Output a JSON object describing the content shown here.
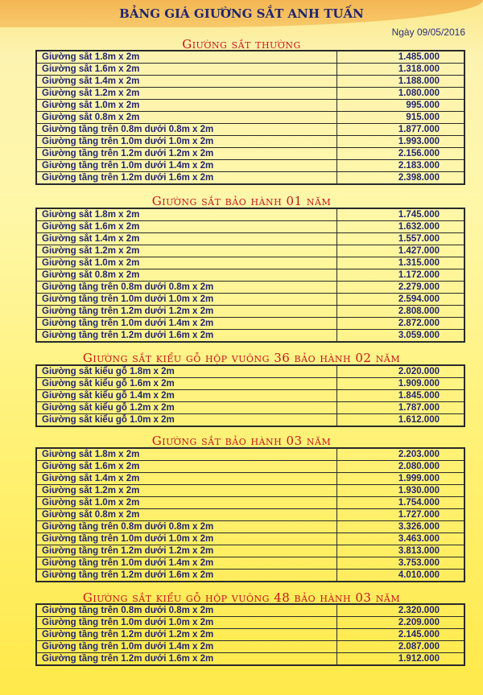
{
  "header": {
    "title": "BẢNG GIÁ GIƯỜNG SẮT ANH TUẤN",
    "date": "Ngày 09/05/2016"
  },
  "sections": [
    {
      "title": "Giường sắt thường",
      "rows": [
        [
          "Giường sắt 1.8m x 2m",
          "1.485.000"
        ],
        [
          "Giường sắt 1.6m x 2m",
          "1.318.000"
        ],
        [
          "Giường sắt 1.4m x 2m",
          "1.188.000"
        ],
        [
          "Giường sắt 1.2m x 2m",
          "1.080.000"
        ],
        [
          "Giường sắt 1.0m x 2m",
          "995.000"
        ],
        [
          "Giường sắt 0.8m x 2m",
          "915.000"
        ],
        [
          "Giường tầng trên 0.8m dưới 0.8m x 2m",
          "1.877.000"
        ],
        [
          "Giường tầng trên 1.0m dưới 1.0m x 2m",
          "1.993.000"
        ],
        [
          "Giường tầng trên 1.2m dưới 1.2m x 2m",
          "2.156.000"
        ],
        [
          "Giường tầng trên 1.0m dưới 1.4m x 2m",
          "2.183.000"
        ],
        [
          "Giường tầng trên 1.2m dưới 1.6m x 2m",
          "2.398.000"
        ]
      ]
    },
    {
      "title": "Giường sắt bảo hành 01 năm",
      "rows": [
        [
          "Giường sắt 1.8m x 2m",
          "1.745.000"
        ],
        [
          "Giường sắt 1.6m x 2m",
          "1.632.000"
        ],
        [
          "Giường sắt 1.4m x 2m",
          "1.557.000"
        ],
        [
          "Giường sắt 1.2m x 2m",
          "1.427.000"
        ],
        [
          "Giường sắt 1.0m x 2m",
          "1.315.000"
        ],
        [
          "Giường sắt 0.8m x 2m",
          "1.172.000"
        ],
        [
          "Giường tầng trên 0.8m dưới 0.8m x 2m",
          "2.279.000"
        ],
        [
          "Giường tầng trên 1.0m dưới 1.0m x 2m",
          "2.594.000"
        ],
        [
          "Giường tầng trên 1.2m dưới 1.2m x 2m",
          "2.808.000"
        ],
        [
          "Giường tầng trên 1.0m dưới 1.4m x 2m",
          "2.872.000"
        ],
        [
          "Giường tầng trên 1.2m dưới 1.6m x 2m",
          "3.059.000"
        ]
      ]
    },
    {
      "title": "Giường sắt kiểu gỗ hộp vuông 36 bảo hành 02 năm",
      "rows": [
        [
          "Giường sắt kiểu gỗ 1.8m x 2m",
          "2.020.000"
        ],
        [
          "Giường sắt kiểu gỗ 1.6m x 2m",
          "1.909.000"
        ],
        [
          "Giường sắt kiểu gỗ 1.4m x 2m",
          "1.845.000"
        ],
        [
          "Giường sắt kiểu gỗ 1.2m x 2m",
          "1.787.000"
        ],
        [
          "Giường sắt kiểu gỗ 1.0m x 2m",
          "1.612.000"
        ]
      ]
    },
    {
      "title": "Giường sắt bảo hành 03 năm",
      "rows": [
        [
          "Giường sắt 1.8m x 2m",
          "2.203.000"
        ],
        [
          "Giường sắt 1.6m x 2m",
          "2.080.000"
        ],
        [
          "Giường sắt 1.4m x 2m",
          "1.999.000"
        ],
        [
          "Giường sắt 1.2m x 2m",
          "1.930.000"
        ],
        [
          "Giường sắt 1.0m x 2m",
          "1.754.000"
        ],
        [
          "Giường sắt 0.8m x 2m",
          "1.727.000"
        ],
        [
          "Giường tầng trên 0.8m dưới 0.8m x 2m",
          "3.326.000"
        ],
        [
          "Giường tầng trên 1.0m dưới 1.0m x 2m",
          "3.463.000"
        ],
        [
          "Giường tầng trên 1.2m dưới 1.2m x 2m",
          "3.813.000"
        ],
        [
          "Giường tầng trên 1.0m dưới 1.4m x 2m",
          "3.753.000"
        ],
        [
          "Giường tầng trên 1.2m dưới 1.6m x 2m",
          "4.010.000"
        ]
      ]
    },
    {
      "title": "Giường sắt kiểu gỗ hộp vuông 48 bảo hành 03 năm",
      "rows": [
        [
          "Giường tầng trên 0.8m dưới 0.8m x 2m",
          "2.320.000"
        ],
        [
          "Giường tầng trên 1.0m dưới 1.0m x 2m",
          "2.209.000"
        ],
        [
          "Giường tầng trên 1.2m dưới 1.2m x 2m",
          "2.145.000"
        ],
        [
          "Giường tầng trên 1.0m dưới 1.4m x 2m",
          "2.087.000"
        ],
        [
          "Giường tầng trên 1.2m dưới 1.6m x 2m",
          "1.912.000"
        ]
      ]
    }
  ]
}
